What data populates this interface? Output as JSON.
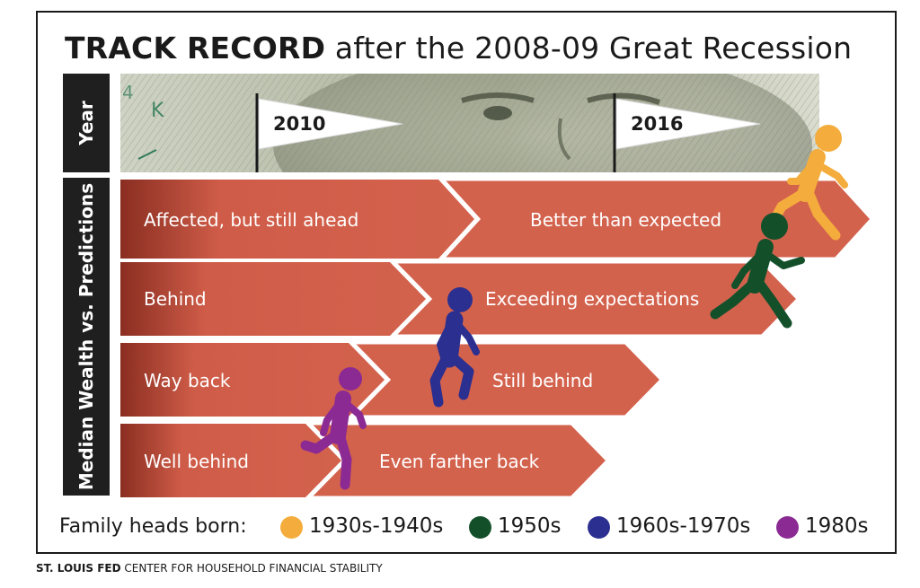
{
  "title": {
    "bold": "TRACK RECORD",
    "rest": "after the 2008-09 Great Recession"
  },
  "side_labels": {
    "year": "Year",
    "median": "Median Wealth vs. Predictions"
  },
  "years": [
    "2010",
    "2016"
  ],
  "rows": [
    {
      "left": "Affected, but still ahead",
      "right": "Better than expected"
    },
    {
      "left": "Behind",
      "right": "Exceeding expectations"
    },
    {
      "left": "Way back",
      "right": "Still behind"
    },
    {
      "left": "Well behind",
      "right": "Even farther back"
    }
  ],
  "legend": {
    "label": "Family heads born:",
    "items": [
      {
        "label": "1930s-1940s",
        "color": "#f4ad3c",
        "icon": "runner-icon"
      },
      {
        "label": "1950s",
        "color": "#13502a",
        "icon": "runner-icon"
      },
      {
        "label": "1960s-1970s",
        "color": "#2b2f90",
        "icon": "runner-icon"
      },
      {
        "label": "1980s",
        "color": "#8b2a93",
        "icon": "runner-icon"
      }
    ]
  },
  "footer": {
    "bold": "ST. LOUIS FED",
    "rest": "CENTER FOR HOUSEHOLD FINANCIAL STABILITY"
  },
  "colors": {
    "arrow": "#cf5c48",
    "arrow_dark": "#8a2e21",
    "side": "#1f1f1f"
  }
}
